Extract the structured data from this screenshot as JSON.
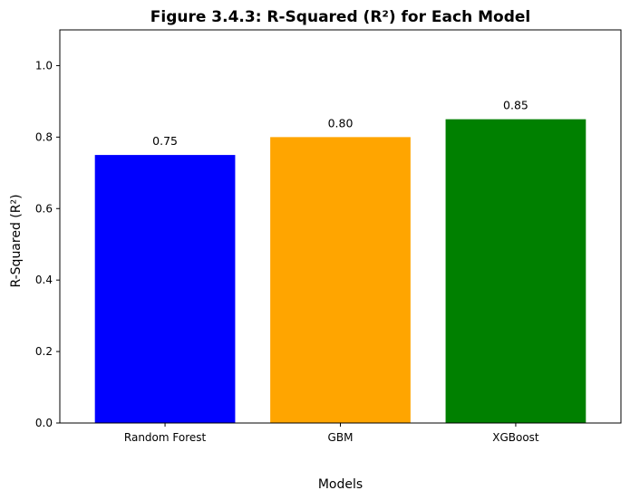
{
  "chart_data": {
    "type": "bar",
    "title": "Figure 3.4.3: R-Squared (R²) for Each Model",
    "xlabel": "Models",
    "ylabel": "R-Squared (R²)",
    "categories": [
      "Random Forest",
      "GBM",
      "XGBoost"
    ],
    "values": [
      0.75,
      0.8,
      0.85
    ],
    "data_labels": [
      "0.75",
      "0.80",
      "0.85"
    ],
    "colors": [
      "#0000ff",
      "#ffa500",
      "#008000"
    ],
    "ylim": [
      0,
      1.1
    ],
    "yticks": [
      0.0,
      0.2,
      0.4,
      0.6,
      0.8,
      1.0
    ],
    "ytick_labels": [
      "0.0",
      "0.2",
      "0.4",
      "0.6",
      "0.8",
      "1.0"
    ],
    "grid": false,
    "legend": "none"
  }
}
